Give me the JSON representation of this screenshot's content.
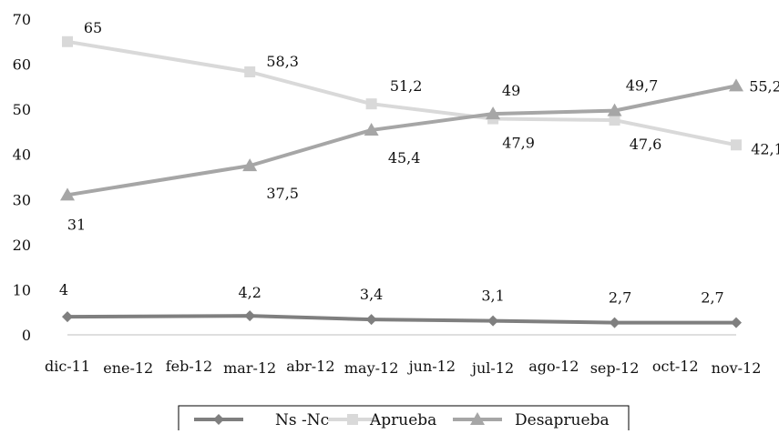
{
  "chart_data": {
    "type": "line",
    "categories": [
      "dic-11",
      "ene-12",
      "feb-12",
      "mar-12",
      "abr-12",
      "may-12",
      "jun-12",
      "jul-12",
      "ago-12",
      "sep-12",
      "oct-12",
      "nov-12"
    ],
    "ylim": [
      0,
      70
    ],
    "yticks": [
      0,
      10,
      20,
      30,
      40,
      50,
      60,
      70
    ],
    "legend_position": "bottom",
    "series": [
      {
        "name": "Ns -Nc",
        "color": "#7f7f7f",
        "marker": "diamond",
        "points": [
          {
            "x": "dic-11",
            "y": 4,
            "label": "4"
          },
          {
            "x": "mar-12",
            "y": 4.2,
            "label": "4,2"
          },
          {
            "x": "may-12",
            "y": 3.4,
            "label": "3,4"
          },
          {
            "x": "jul-12",
            "y": 3.1,
            "label": "3,1"
          },
          {
            "x": "sep-12",
            "y": 2.7,
            "label": "2,7"
          },
          {
            "x": "nov-12",
            "y": 2.7,
            "label": "2,7"
          }
        ]
      },
      {
        "name": "Aprueba",
        "color": "#d9d9d9",
        "marker": "square",
        "points": [
          {
            "x": "dic-11",
            "y": 65,
            "label": "65"
          },
          {
            "x": "mar-12",
            "y": 58.3,
            "label": "58,3"
          },
          {
            "x": "may-12",
            "y": 51.2,
            "label": "51,2"
          },
          {
            "x": "jul-12",
            "y": 47.9,
            "label": "47,9"
          },
          {
            "x": "sep-12",
            "y": 47.6,
            "label": "47,6"
          },
          {
            "x": "nov-12",
            "y": 42.1,
            "label": "42,1"
          }
        ]
      },
      {
        "name": "Desaprueba",
        "color": "#a6a6a6",
        "marker": "triangle",
        "points": [
          {
            "x": "dic-11",
            "y": 31,
            "label": "31"
          },
          {
            "x": "mar-12",
            "y": 37.5,
            "label": "37,5"
          },
          {
            "x": "may-12",
            "y": 45.4,
            "label": "45,4"
          },
          {
            "x": "jul-12",
            "y": 49,
            "label": "49"
          },
          {
            "x": "sep-12",
            "y": 49.7,
            "label": "49,7"
          },
          {
            "x": "nov-12",
            "y": 55.2,
            "label": "55,2"
          }
        ]
      }
    ]
  }
}
